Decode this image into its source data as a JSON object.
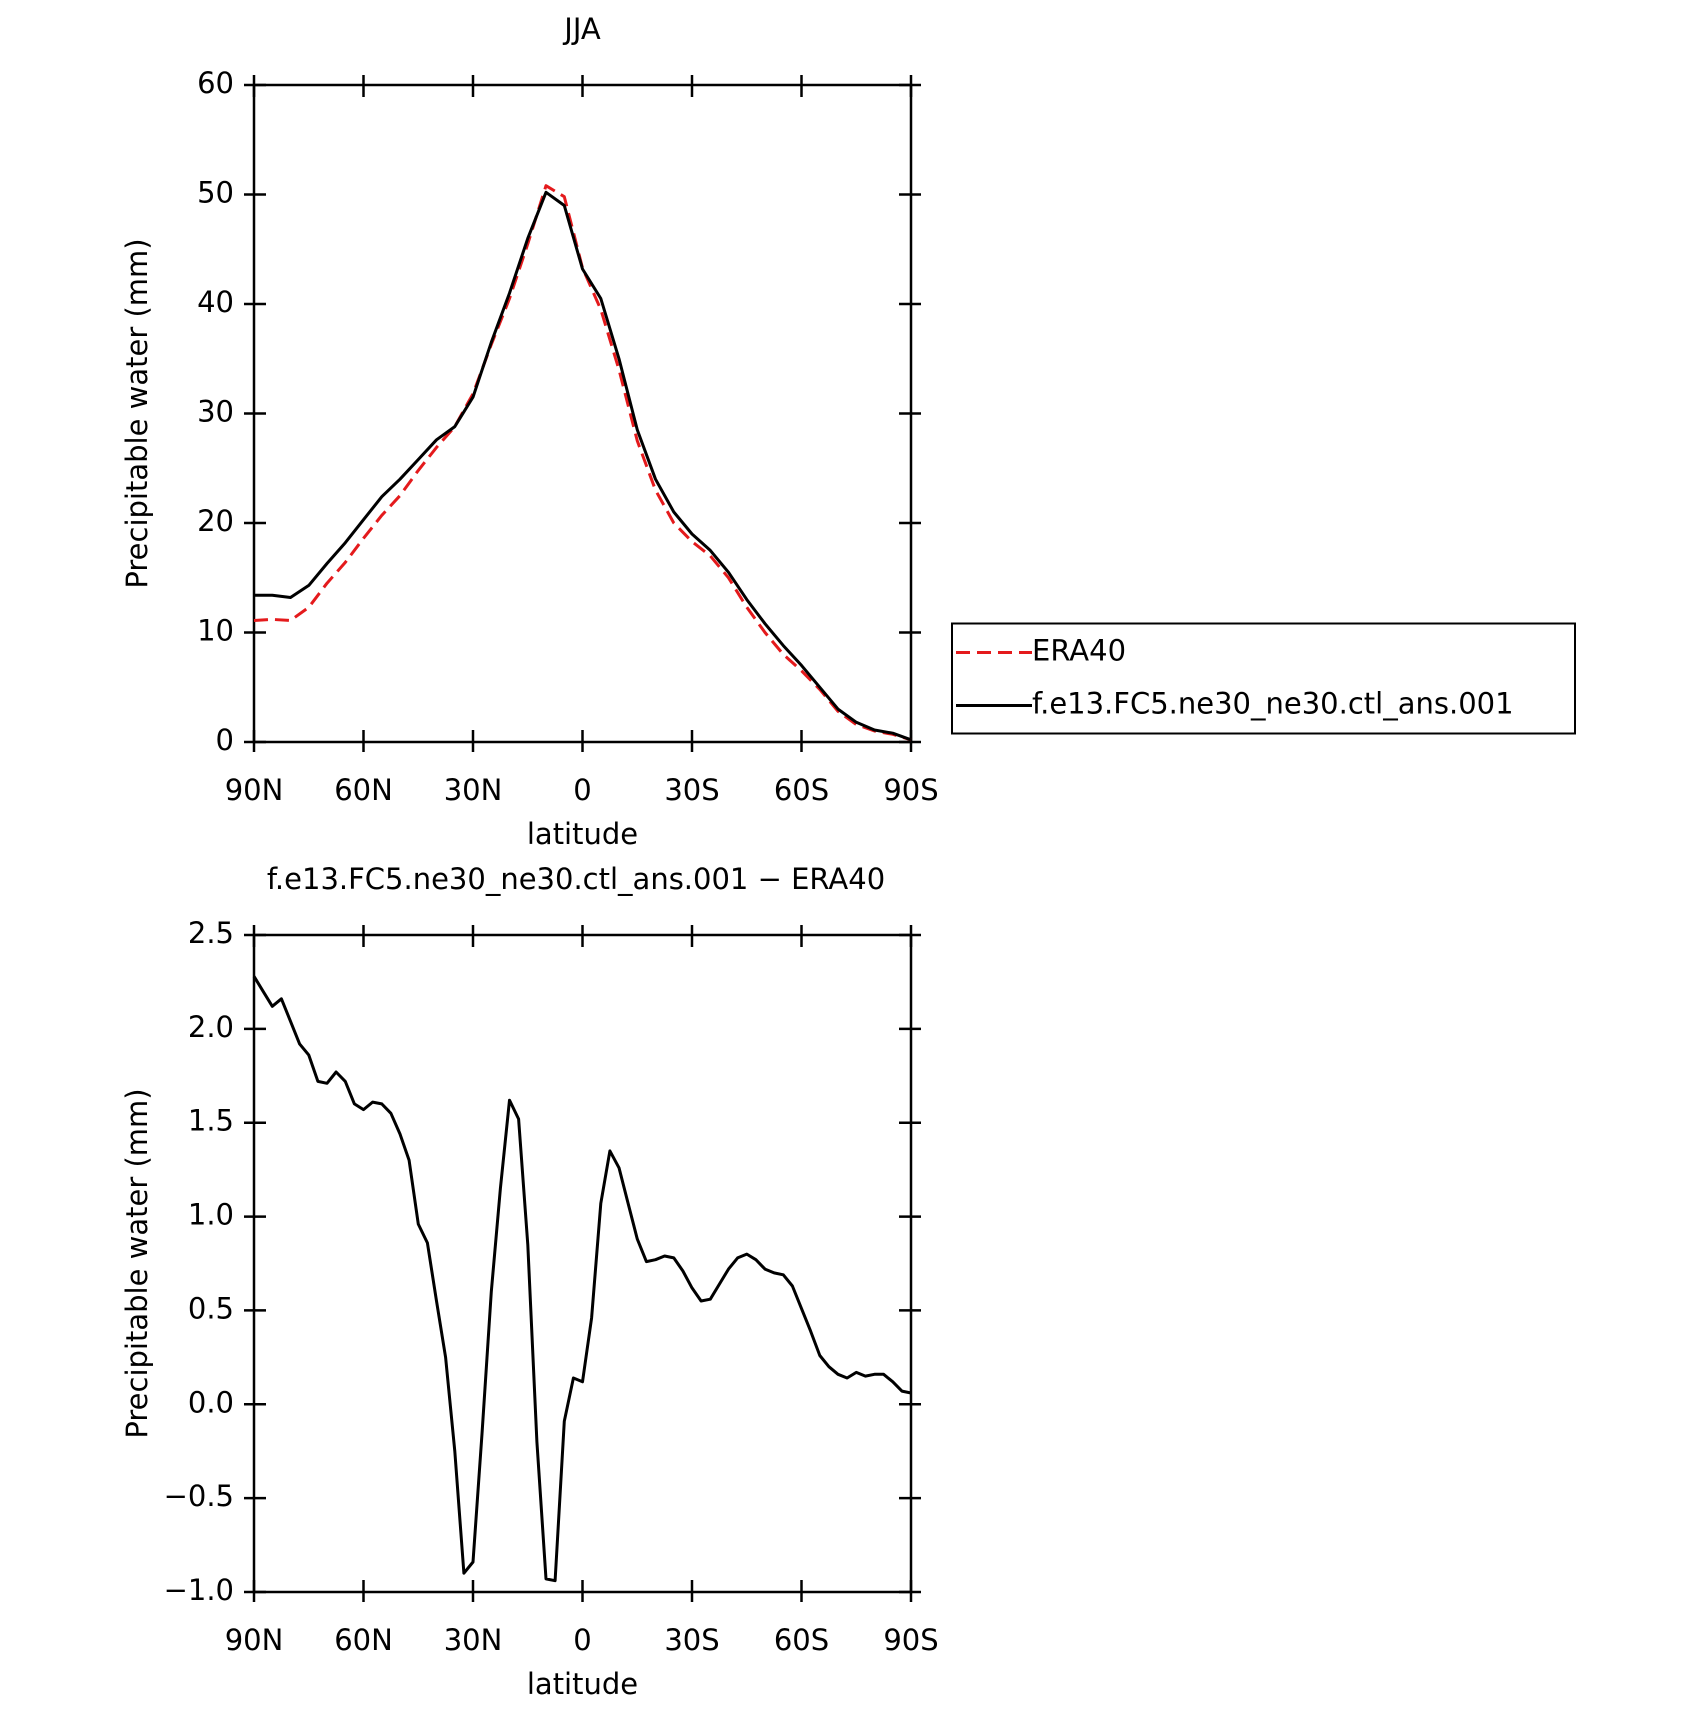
{
  "chart_data": [
    {
      "type": "line",
      "title": "JJA",
      "xlabel": "latitude",
      "ylabel": "Precipitable water (mm)",
      "x": [
        90,
        85,
        80,
        75,
        70,
        65,
        60,
        55,
        50,
        45,
        40,
        35,
        30,
        25,
        20,
        15,
        10,
        5,
        0,
        -5,
        -10,
        -15,
        -20,
        -25,
        -30,
        -35,
        -40,
        -45,
        -50,
        -55,
        -60,
        -65,
        -70,
        -75,
        -80,
        -85,
        -90
      ],
      "series": [
        {
          "name": "ERA40",
          "color": "#e41a1c",
          "dashed": true,
          "values": [
            11.1,
            11.2,
            11.1,
            12.3,
            14.5,
            16.4,
            18.6,
            20.7,
            22.5,
            24.8,
            26.9,
            28.8,
            31.8,
            36.3,
            40.5,
            45.5,
            50.8,
            49.8,
            43.3,
            39.5,
            34,
            27.5,
            23,
            20,
            18.3,
            17,
            15,
            12.3,
            10,
            8,
            6.5,
            4.8,
            2.8,
            1.6,
            1.0,
            0.7,
            0.2
          ]
        },
        {
          "name": "f.e13.FC5.ne30_ne30.ctl_ans.001",
          "color": "#000000",
          "dashed": false,
          "values": [
            13.4,
            13.4,
            13.2,
            14.3,
            16.3,
            18.2,
            20.3,
            22.4,
            24.0,
            25.8,
            27.6,
            28.8,
            31.5,
            36.5,
            41,
            46,
            50.2,
            49.0,
            43.2,
            40.5,
            35,
            28.5,
            24,
            21,
            19,
            17.5,
            15.5,
            13,
            10.8,
            8.8,
            7,
            5,
            3,
            1.8,
            1.1,
            0.8,
            0.2
          ]
        }
      ],
      "xlim": [
        90,
        -90
      ],
      "xticks": [
        {
          "value": 90,
          "label": "90N"
        },
        {
          "value": 60,
          "label": "60N"
        },
        {
          "value": 30,
          "label": "30N"
        },
        0,
        {
          "value": -30,
          "label": "30S"
        },
        {
          "value": -60,
          "label": "60S"
        },
        {
          "value": -90,
          "label": "90S"
        }
      ],
      "ylim": [
        0,
        60
      ],
      "yticks": [
        0,
        10,
        20,
        30,
        40,
        50,
        60
      ],
      "legend": "right"
    },
    {
      "type": "line",
      "title": "f.e13.FC5.ne30_ne30.ctl_ans.001 − ERA40",
      "xlabel": "latitude",
      "ylabel": "Precipitable water (mm)",
      "x": [
        90,
        87.5,
        85,
        82.5,
        80,
        77.5,
        75,
        72.5,
        70,
        67.5,
        65,
        62.5,
        60,
        57.5,
        55,
        52.5,
        50,
        47.5,
        45,
        42.5,
        40,
        37.5,
        35,
        32.5,
        30,
        27.5,
        25,
        22.5,
        20,
        17.5,
        15,
        12.5,
        10,
        7.5,
        5,
        2.5,
        0,
        -2.5,
        -5,
        -7.5,
        -10,
        -12.5,
        -15,
        -17.5,
        -20,
        -22.5,
        -25,
        -27.5,
        -30,
        -32.5,
        -35,
        -37.5,
        -40,
        -42.5,
        -45,
        -47.5,
        -50,
        -52.5,
        -55,
        -57.5,
        -60,
        -62.5,
        -65,
        -67.5,
        -70,
        -72.5,
        -75,
        -77.5,
        -80,
        -82.5,
        -85,
        -87.5,
        -90
      ],
      "values": [
        2.28,
        2.2,
        2.12,
        2.16,
        2.04,
        1.92,
        1.86,
        1.72,
        1.71,
        1.77,
        1.72,
        1.6,
        1.57,
        1.61,
        1.6,
        1.55,
        1.44,
        1.3,
        0.96,
        0.86,
        0.55,
        0.25,
        -0.25,
        -0.9,
        -0.84,
        -0.15,
        0.6,
        1.15,
        1.62,
        1.52,
        0.85,
        -0.2,
        -0.93,
        -0.94,
        -0.09,
        0.14,
        0.12,
        0.46,
        1.07,
        1.35,
        1.26,
        1.07,
        0.88,
        0.76,
        0.77,
        0.79,
        0.78,
        0.71,
        0.62,
        0.55,
        0.56,
        0.64,
        0.72,
        0.78,
        0.8,
        0.77,
        0.72,
        0.7,
        0.69,
        0.63,
        0.51,
        0.39,
        0.26,
        0.2,
        0.16,
        0.14,
        0.17,
        0.15,
        0.16,
        0.16,
        0.12,
        0.07,
        0.06
      ],
      "color": "#000000",
      "xlim": [
        90,
        -90
      ],
      "xticks": [
        {
          "value": 90,
          "label": "90N"
        },
        {
          "value": 60,
          "label": "60N"
        },
        {
          "value": 30,
          "label": "30N"
        },
        0,
        {
          "value": -30,
          "label": "30S"
        },
        {
          "value": -60,
          "label": "60S"
        },
        {
          "value": -90,
          "label": "90S"
        }
      ],
      "ylim": [
        -1.0,
        2.5
      ],
      "yticks": [
        {
          "value": -1.0,
          "label": "−1.0"
        },
        {
          "value": -0.5,
          "label": "−0.5"
        },
        {
          "value": 0.0,
          "label": "0.0"
        },
        0.5,
        {
          "value": 1.0,
          "label": "1.0"
        },
        1.5,
        {
          "value": 2.0,
          "label": "2.0"
        },
        2.5
      ]
    }
  ]
}
